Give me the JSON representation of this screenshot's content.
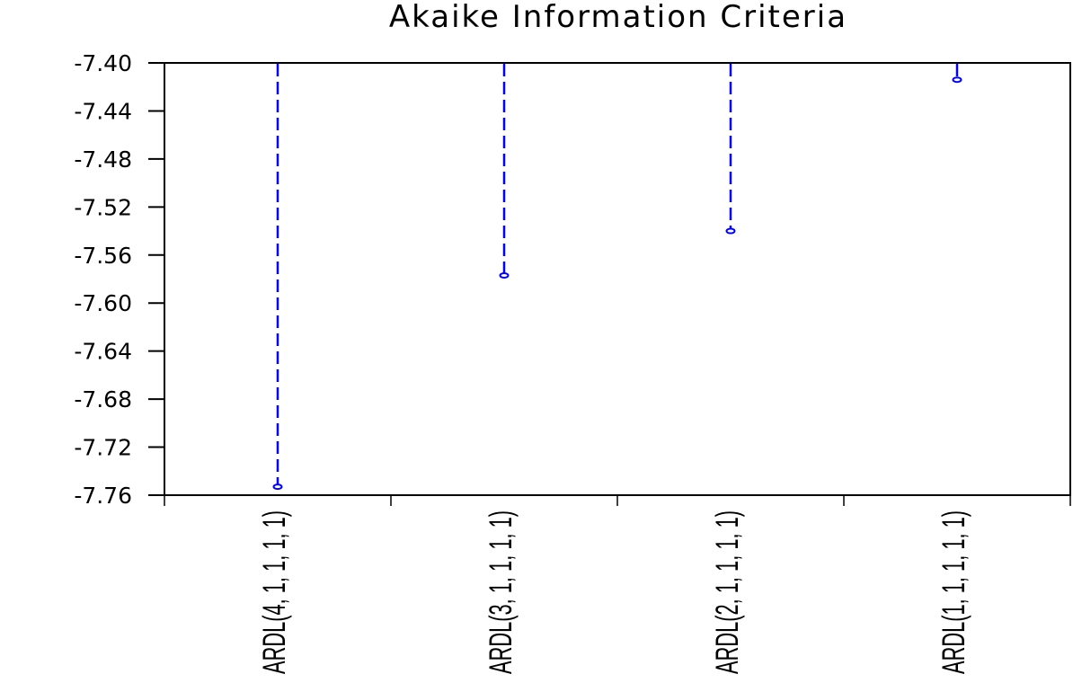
{
  "chart_data": {
    "type": "scatter",
    "title": "Akaike Information Criteria",
    "xlabel": "",
    "ylabel": "",
    "categories": [
      "ARDL(4, 1, 1, 1, 1)",
      "ARDL(3, 1, 1, 1, 1)",
      "ARDL(2, 1, 1, 1, 1)",
      "ARDL(1, 1, 1, 1, 1)"
    ],
    "values": [
      -7.753,
      -7.577,
      -7.54,
      -7.414
    ],
    "ylim": [
      -7.76,
      -7.4
    ],
    "yticks": [
      "-7.40",
      "-7.44",
      "-7.48",
      "-7.52",
      "-7.56",
      "-7.60",
      "-7.64",
      "-7.68",
      "-7.72",
      "-7.76"
    ],
    "grid": false,
    "legend": "none",
    "style": "dashed drop lines from top of plot to hollow circle markers",
    "color": "#0000ff"
  }
}
